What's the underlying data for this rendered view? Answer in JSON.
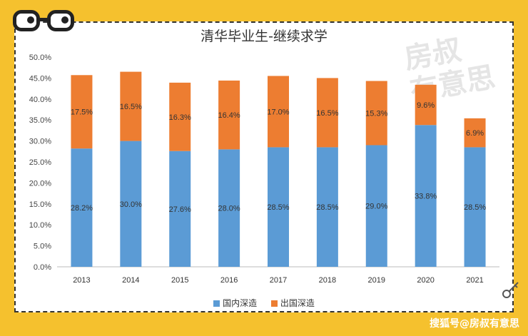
{
  "chart_data": {
    "type": "bar",
    "stacked": true,
    "title": "清华毕业生-继续求学",
    "categories": [
      "2013",
      "2014",
      "2015",
      "2016",
      "2017",
      "2018",
      "2019",
      "2020",
      "2021"
    ],
    "series": [
      {
        "name": "国内深造",
        "color": "#5b9bd5",
        "values": [
          28.2,
          30.0,
          27.6,
          28.0,
          28.5,
          28.5,
          29.0,
          33.8,
          28.5
        ]
      },
      {
        "name": "出国深造",
        "color": "#ed7d31",
        "values": [
          17.5,
          16.5,
          16.3,
          16.4,
          17.0,
          16.5,
          15.3,
          9.6,
          6.9
        ]
      }
    ],
    "data_labels": {
      "国内深造": [
        "28.2%",
        "30.0%",
        "27.6%",
        "28.0%",
        "28.5%",
        "28.5%",
        "29.0%",
        "33.8%",
        "28.5%"
      ],
      "出国深造": [
        "17.5%",
        "16.5%",
        "16.3%",
        "16.4%",
        "17.0%",
        "16.5%",
        "15.3%",
        "9.6%",
        "6.9%"
      ]
    },
    "yticks": [
      "0.0%",
      "5.0%",
      "10.0%",
      "15.0%",
      "20.0%",
      "25.0%",
      "30.0%",
      "35.0%",
      "40.0%",
      "45.0%",
      "50.0%"
    ],
    "ylim": [
      0,
      50
    ],
    "grid": false,
    "legend": "bottom"
  },
  "watermark": "房叔有意思",
  "credit": "搜狐号@房叔有意思"
}
